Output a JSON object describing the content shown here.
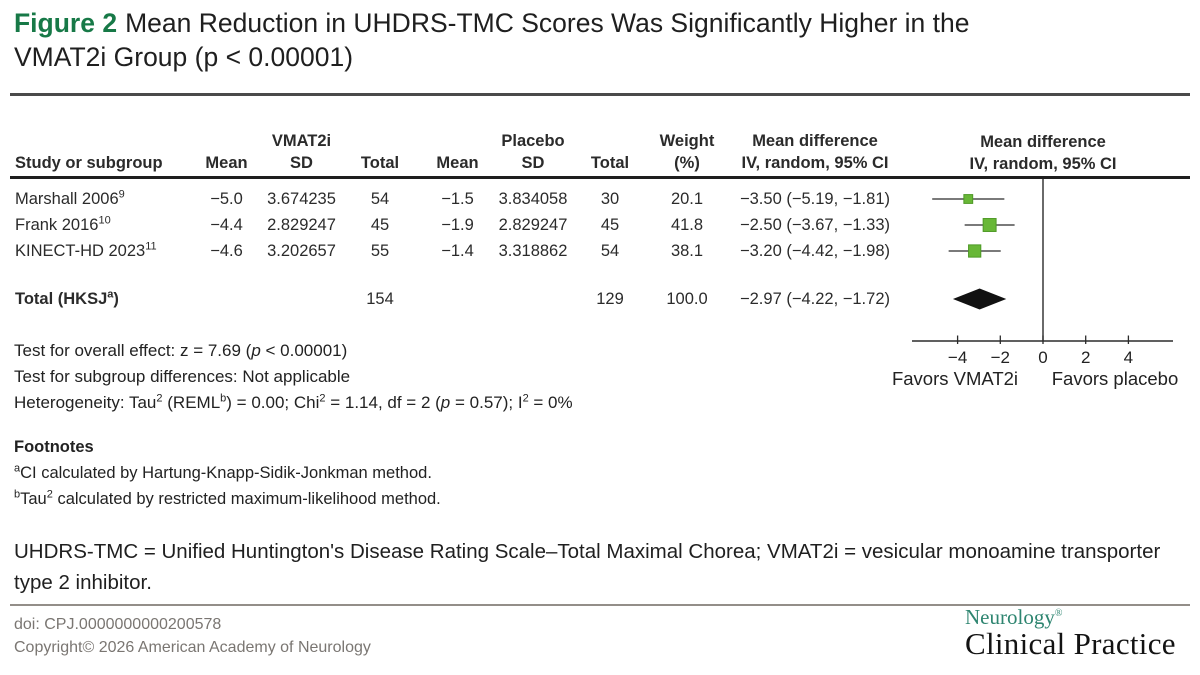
{
  "title": {
    "label": "Figure 2",
    "line1": "Mean Reduction in UHDRS-TMC Scores Was Significantly Higher in the",
    "line2": "VMAT2i Group (p < 0.00001)"
  },
  "table": {
    "head1": [
      "",
      "",
      "VMAT2i",
      "",
      "",
      "Placebo",
      "",
      "Weight",
      "Mean difference"
    ],
    "head2": [
      "Study or subgroup",
      "Mean",
      "SD",
      "Total",
      "Mean",
      "SD",
      "Total",
      "(%)",
      "IV, random, 95% CI"
    ],
    "total_label": [
      {
        "t": "Total (HKSJ"
      },
      {
        "s": "a"
      },
      {
        "t": ")"
      }
    ]
  },
  "chart_data": {
    "type": "forest",
    "title": "Figure 2 Mean Reduction in UHDRS-TMC Scores Was Significantly Higher in the VMAT2i Group (p < 0.00001)",
    "effect_measure": "Mean difference IV, random, 95% CI",
    "studies": [
      {
        "name": "Marshall 2006",
        "ref": "9",
        "mean_vmat2i": -5.0,
        "sd_vmat2i": "3.674235",
        "total_vmat2i": 54,
        "mean_placebo": -1.5,
        "sd_placebo": "3.834058",
        "total_placebo": 30,
        "weight_pct": 20.1,
        "md": -3.5,
        "ci_low": -5.19,
        "ci_high": -1.81
      },
      {
        "name": "Frank 2016",
        "ref": "10",
        "mean_vmat2i": -4.4,
        "sd_vmat2i": "2.829247",
        "total_vmat2i": 45,
        "mean_placebo": -1.9,
        "sd_placebo": "2.829247",
        "total_placebo": 45,
        "weight_pct": 41.8,
        "md": -2.5,
        "ci_low": -3.67,
        "ci_high": -1.33
      },
      {
        "name": "KINECT-HD 2023",
        "ref": "11",
        "mean_vmat2i": -4.6,
        "sd_vmat2i": "3.202657",
        "total_vmat2i": 55,
        "mean_placebo": -1.4,
        "sd_placebo": "3.318862",
        "total_placebo": 54,
        "weight_pct": 38.1,
        "md": -3.2,
        "ci_low": -4.42,
        "ci_high": -1.98
      }
    ],
    "total": {
      "total_vmat2i": 154,
      "total_placebo": 129,
      "weight_pct": 100.0,
      "md": -2.97,
      "ci_low": -4.22,
      "ci_high": -1.72
    },
    "axis": {
      "ticks": [
        -4,
        -2,
        0,
        2,
        4
      ],
      "xlim": [
        -6,
        6
      ],
      "favors_left": "Favors VMAT2i",
      "favors_right": "Favors placebo",
      "grid": false
    }
  },
  "plot_header": {
    "line1": "Mean difference",
    "line2": "IV, random, 95% CI"
  },
  "stats_lines": [
    [
      {
        "t": "Test for overall effect: z = 7.69 ("
      },
      {
        "i": "p"
      },
      {
        "t": " < 0.00001)"
      }
    ],
    [
      {
        "t": "Test for subgroup differences: Not applicable"
      }
    ],
    [
      {
        "t": "Heterogeneity: Tau"
      },
      {
        "s": "2"
      },
      {
        "t": " (REML"
      },
      {
        "s": "b"
      },
      {
        "t": ") = 0.00; Chi"
      },
      {
        "s": "2"
      },
      {
        "t": " = 1.14, df = 2 ("
      },
      {
        "i": "p"
      },
      {
        "t": " = 0.57); I"
      },
      {
        "s": "2"
      },
      {
        "t": " = 0%"
      }
    ]
  ],
  "footnotes": {
    "heading": "Footnotes",
    "lines": [
      [
        {
          "s": "a"
        },
        {
          "t": "CI calculated by Hartung-Knapp-Sidik-Jonkman method."
        }
      ],
      [
        {
          "s": "b"
        },
        {
          "t": "Tau"
        },
        {
          "s": "2"
        },
        {
          "t": " calculated by restricted maximum-likelihood method."
        }
      ]
    ]
  },
  "abbreviations": "UHDRS-TMC = Unified Huntington's Disease Rating Scale–Total Maximal Chorea; VMAT2i = vesicular monoamine transporter type 2 inhibitor.",
  "footer": {
    "doi": "doi: CPJ.0000000000200578",
    "copyright": "Copyright© 2026 American Academy of Neurology",
    "journal_name": "Neurology",
    "registered": "®",
    "journal_sub": "Clinical Practice"
  },
  "colors": {
    "accent_green": "#177947",
    "square_fill": "#68b737",
    "square_stroke": "#4d9925",
    "diamond": "#111111",
    "plot_line": "#2b2b2b",
    "logo_green": "#2e8570"
  }
}
